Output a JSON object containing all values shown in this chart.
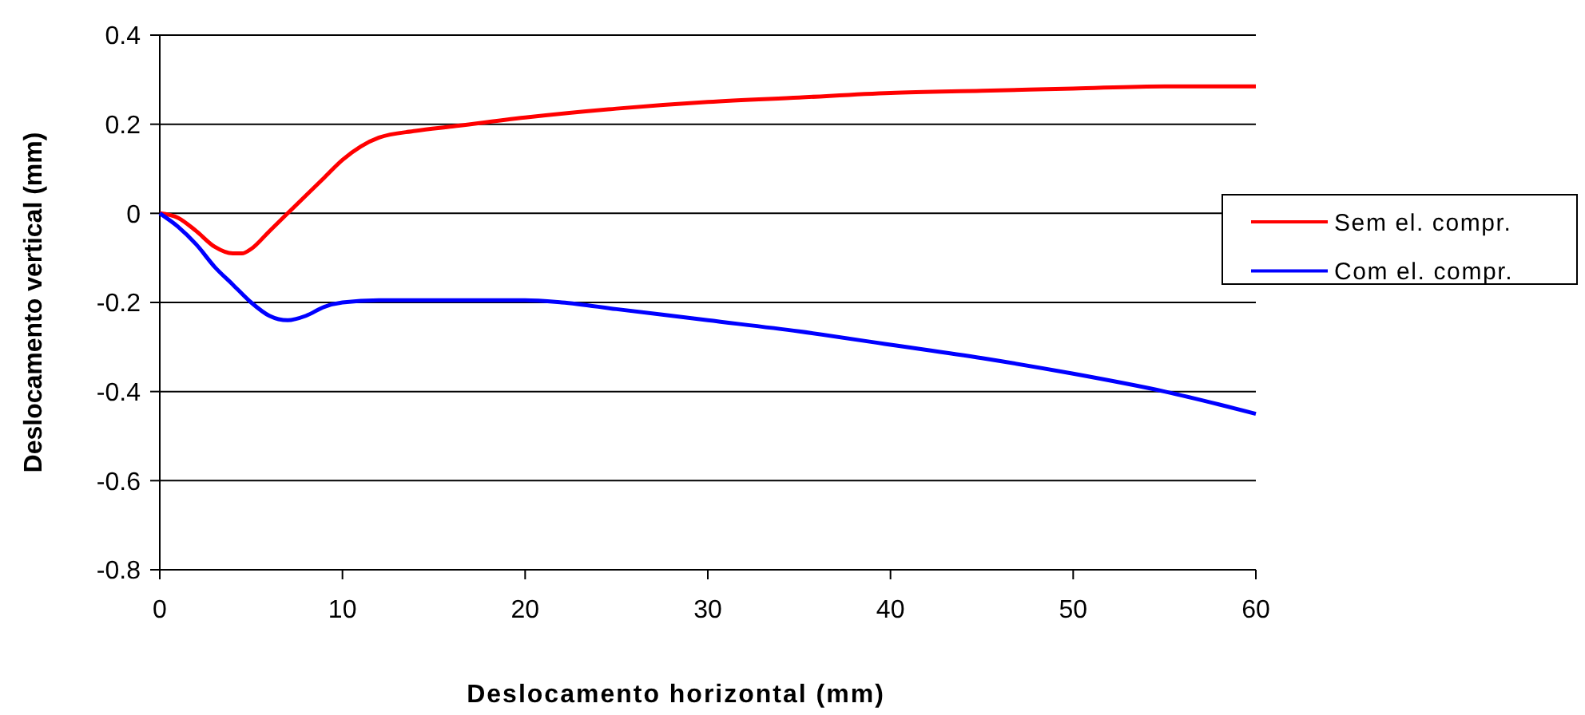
{
  "chart_data": {
    "type": "line",
    "xlabel": "Deslocamento horizontal (mm)",
    "ylabel": "Deslocamento vertical (mm)",
    "xlim": [
      0,
      60
    ],
    "xticks": [
      0,
      10,
      20,
      30,
      40,
      50,
      60
    ],
    "ylim": [
      -0.8,
      0.4
    ],
    "yticks": [
      -0.8,
      -0.6,
      -0.4,
      -0.2,
      0,
      0.2,
      0.4
    ],
    "grid": "y",
    "legend": "right",
    "marker": "none",
    "line_style": "solid",
    "series": [
      {
        "name": "Sem el. compr.",
        "color": "#ff0000",
        "x": [
          0,
          1,
          2,
          3,
          4,
          4.5,
          5,
          6,
          7,
          8,
          9,
          10,
          11,
          12,
          14,
          16,
          20,
          25,
          30,
          35,
          40,
          45,
          50,
          55,
          60
        ],
        "values": [
          0,
          -0.01,
          -0.04,
          -0.075,
          -0.09,
          -0.09,
          -0.08,
          -0.04,
          0,
          0.04,
          0.08,
          0.12,
          0.15,
          0.17,
          0.185,
          0.195,
          0.215,
          0.235,
          0.25,
          0.26,
          0.27,
          0.275,
          0.28,
          0.285,
          0.285
        ]
      },
      {
        "name": "Com el. compr.",
        "color": "#0000ff",
        "x": [
          0,
          1,
          2,
          3,
          4,
          5,
          6,
          7,
          8,
          9,
          10,
          12,
          15,
          20,
          22,
          25,
          30,
          35,
          40,
          45,
          50,
          55,
          60
        ],
        "values": [
          0,
          -0.03,
          -0.07,
          -0.12,
          -0.16,
          -0.2,
          -0.23,
          -0.24,
          -0.23,
          -0.21,
          -0.2,
          -0.195,
          -0.195,
          -0.195,
          -0.2,
          -0.215,
          -0.24,
          -0.265,
          -0.295,
          -0.325,
          -0.36,
          -0.4,
          -0.45
        ]
      }
    ]
  }
}
